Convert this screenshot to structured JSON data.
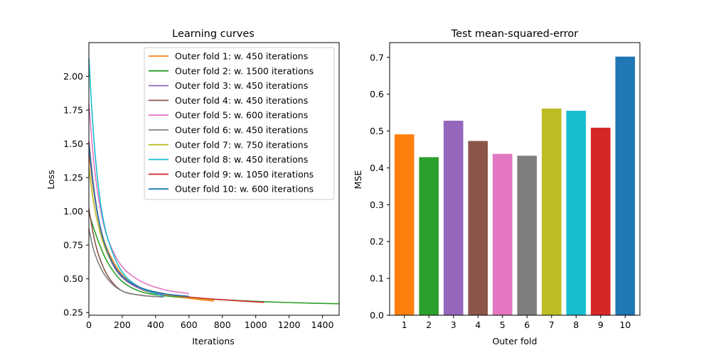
{
  "chart_data": [
    {
      "type": "line",
      "title": "Learning curves",
      "xlabel": "Iterations",
      "ylabel": "Loss",
      "xlim": [
        0,
        1500
      ],
      "ylim": [
        0.23,
        2.25
      ],
      "xticks": [
        0,
        200,
        400,
        600,
        800,
        1000,
        1200,
        1400
      ],
      "yticks": [
        0.25,
        0.5,
        0.75,
        1.0,
        1.25,
        1.5,
        1.75,
        2.0
      ],
      "ytick_labels": [
        "0.25",
        "0.50",
        "0.75",
        "1.00",
        "1.25",
        "1.50",
        "1.75",
        "2.00"
      ],
      "grid": false,
      "legend_position": "top-right",
      "series": [
        {
          "name": "Outer fold 1: w. 450 iterations",
          "color": "#ff7f0e",
          "x": [
            0,
            25,
            50,
            75,
            100,
            150,
            200,
            300,
            450,
            600,
            750
          ],
          "y": [
            1.43,
            1.18,
            0.99,
            0.85,
            0.75,
            0.62,
            0.53,
            0.43,
            0.38,
            0.355,
            0.335
          ]
        },
        {
          "name": "Outer fold 2: w. 1500 iterations",
          "color": "#2ca02c",
          "x": [
            0,
            25,
            50,
            75,
            100,
            150,
            200,
            300,
            450,
            600,
            800,
            1000,
            1200,
            1500
          ],
          "y": [
            0.99,
            0.89,
            0.8,
            0.72,
            0.65,
            0.55,
            0.48,
            0.41,
            0.375,
            0.36,
            0.345,
            0.333,
            0.324,
            0.315
          ]
        },
        {
          "name": "Outer fold 3: w. 450 iterations",
          "color": "#9467bd",
          "x": [
            0,
            25,
            50,
            75,
            100,
            150,
            200,
            300,
            450
          ],
          "y": [
            1.48,
            1.2,
            0.99,
            0.84,
            0.73,
            0.59,
            0.51,
            0.43,
            0.38
          ]
        },
        {
          "name": "Outer fold 4: w. 450 iterations",
          "color": "#8c564b",
          "x": [
            0,
            25,
            50,
            75,
            100,
            150,
            200,
            300,
            450
          ],
          "y": [
            1.02,
            0.84,
            0.71,
            0.62,
            0.55,
            0.46,
            0.41,
            0.38,
            0.365
          ]
        },
        {
          "name": "Outer fold 5: w. 600 iterations",
          "color": "#e377c2",
          "x": [
            0,
            25,
            50,
            75,
            100,
            150,
            200,
            300,
            450,
            600
          ],
          "y": [
            1.8,
            1.42,
            1.16,
            0.98,
            0.85,
            0.69,
            0.59,
            0.49,
            0.42,
            0.39
          ]
        },
        {
          "name": "Outer fold 6: w. 450 iterations",
          "color": "#7f7f7f",
          "x": [
            0,
            25,
            50,
            75,
            100,
            150,
            200,
            300,
            450
          ],
          "y": [
            0.87,
            0.73,
            0.64,
            0.57,
            0.52,
            0.45,
            0.41,
            0.38,
            0.365
          ]
        },
        {
          "name": "Outer fold 7: w. 750 iterations",
          "color": "#bcbd22",
          "x": [
            0,
            25,
            50,
            75,
            100,
            150,
            200,
            300,
            450,
            600,
            750
          ],
          "y": [
            1.32,
            1.09,
            0.93,
            0.81,
            0.72,
            0.6,
            0.52,
            0.44,
            0.39,
            0.36,
            0.345
          ]
        },
        {
          "name": "Outer fold 8: w. 450 iterations",
          "color": "#17becf",
          "x": [
            0,
            25,
            50,
            75,
            100,
            150,
            200,
            300,
            450
          ],
          "y": [
            2.13,
            1.62,
            1.26,
            1.02,
            0.86,
            0.67,
            0.55,
            0.44,
            0.37
          ]
        },
        {
          "name": "Outer fold 9: w. 1050 iterations",
          "color": "#d62728",
          "x": [
            0,
            25,
            50,
            75,
            100,
            150,
            200,
            300,
            450,
            600,
            800,
            1050
          ],
          "y": [
            1.52,
            1.22,
            1.0,
            0.85,
            0.74,
            0.6,
            0.52,
            0.44,
            0.39,
            0.365,
            0.345,
            0.325
          ]
        },
        {
          "name": "Outer fold 10: w. 600 iterations",
          "color": "#1f77b4",
          "x": [
            0,
            25,
            50,
            75,
            100,
            150,
            200,
            300,
            450,
            600
          ],
          "y": [
            1.5,
            1.21,
            1.0,
            0.85,
            0.74,
            0.6,
            0.52,
            0.44,
            0.39,
            0.37
          ]
        }
      ]
    },
    {
      "type": "bar",
      "title": "Test mean-squared-error",
      "xlabel": "Outer fold",
      "ylabel": "MSE",
      "ylim": [
        0,
        0.74
      ],
      "yticks": [
        0.0,
        0.1,
        0.2,
        0.3,
        0.4,
        0.5,
        0.6,
        0.7
      ],
      "ytick_labels": [
        "0.0",
        "0.1",
        "0.2",
        "0.3",
        "0.4",
        "0.5",
        "0.6",
        "0.7"
      ],
      "grid": false,
      "categories": [
        "1",
        "2",
        "3",
        "4",
        "5",
        "6",
        "7",
        "8",
        "9",
        "10"
      ],
      "values": [
        0.491,
        0.429,
        0.528,
        0.473,
        0.438,
        0.433,
        0.561,
        0.555,
        0.509,
        0.702
      ],
      "colors": [
        "#ff7f0e",
        "#2ca02c",
        "#9467bd",
        "#8c564b",
        "#e377c2",
        "#7f7f7f",
        "#bcbd22",
        "#17becf",
        "#d62728",
        "#1f77b4"
      ]
    }
  ]
}
